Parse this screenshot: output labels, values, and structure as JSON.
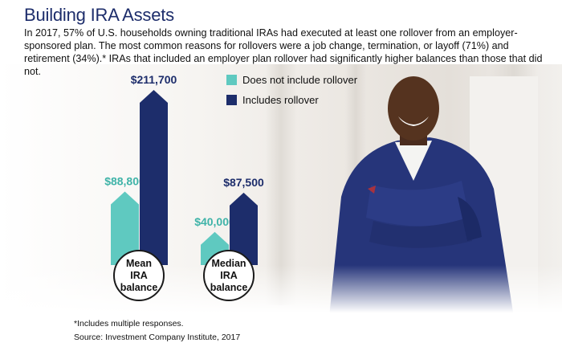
{
  "title": "Building IRA Assets",
  "intro": "In 2017, 57% of U.S. households owning traditional IRAs had executed at least one rollover from an employer-sponsored plan. The most common reasons for rollovers were a job change, termination, or layoff (71%) and retirement (34%).* IRAs that included an employer plan rollover had significantly higher balances than those that did not.",
  "footnote": "*Includes multiple responses.",
  "source": "Source: Investment Company Institute, 2017",
  "chart_data": {
    "type": "bar",
    "categories": [
      "Mean\nIRA\nbalance",
      "Median\nIRA\nbalance"
    ],
    "series": [
      {
        "name": "Does not include rollover",
        "values": [
          88800,
          40000
        ],
        "labels": [
          "$88,800",
          "$40,000"
        ],
        "color": "#5fc9c0"
      },
      {
        "name": "Includes rollover",
        "values": [
          211700,
          87500
        ],
        "labels": [
          "$211,700",
          "$87,500"
        ],
        "color": "#1d2d6b"
      }
    ],
    "title": "",
    "xlabel": "",
    "ylabel": "",
    "ylim": [
      0,
      211700
    ],
    "grid": false,
    "legend": "top"
  },
  "colors": {
    "title": "#1d2d6b",
    "teal": "#5fc9c0",
    "teal_label": "#3fb3a8",
    "navy": "#1d2d6b"
  }
}
